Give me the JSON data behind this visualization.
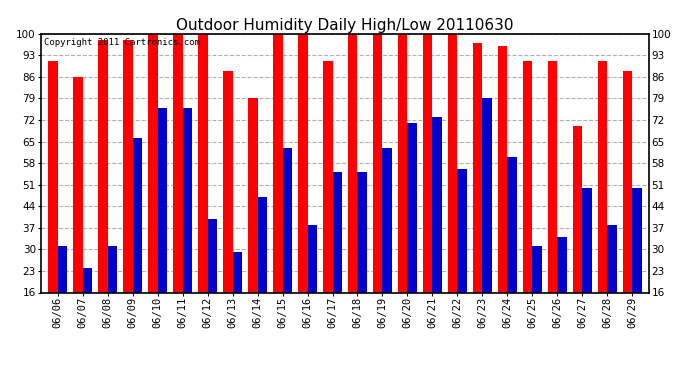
{
  "title": "Outdoor Humidity Daily High/Low 20110630",
  "copyright": "Copyright 2011 Cartronics.com",
  "dates": [
    "06/06",
    "06/07",
    "06/08",
    "06/09",
    "06/10",
    "06/11",
    "06/12",
    "06/13",
    "06/14",
    "06/15",
    "06/16",
    "06/17",
    "06/18",
    "06/19",
    "06/20",
    "06/21",
    "06/22",
    "06/23",
    "06/24",
    "06/25",
    "06/26",
    "06/27",
    "06/28",
    "06/29"
  ],
  "highs": [
    91,
    86,
    98,
    98,
    100,
    100,
    100,
    88,
    79,
    100,
    100,
    91,
    100,
    100,
    100,
    100,
    100,
    97,
    96,
    91,
    91,
    70,
    91,
    88
  ],
  "lows": [
    31,
    24,
    31,
    66,
    76,
    76,
    40,
    29,
    47,
    63,
    38,
    55,
    55,
    63,
    71,
    73,
    56,
    79,
    60,
    31,
    34,
    50,
    38,
    50
  ],
  "high_color": "#ff0000",
  "low_color": "#0000cc",
  "background_color": "#ffffff",
  "plot_bg_color": "#ffffff",
  "grid_color": "#b0b0b0",
  "ymin": 16,
  "ymax": 100,
  "yticks": [
    16,
    23,
    30,
    37,
    44,
    51,
    58,
    65,
    72,
    79,
    86,
    93,
    100
  ],
  "bar_width": 0.38,
  "title_fontsize": 11,
  "tick_fontsize": 7.5,
  "copyright_fontsize": 6.5
}
